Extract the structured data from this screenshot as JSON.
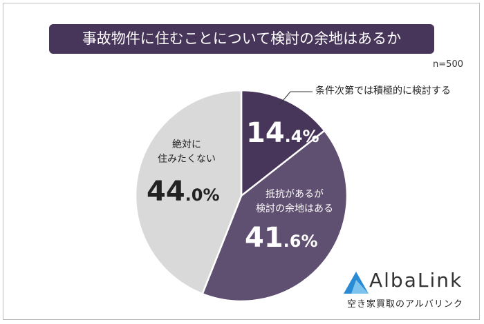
{
  "title": "事故物件に住むことについて検討の余地はあるか",
  "sample_size": "n=500",
  "chart_data": {
    "type": "pie",
    "title": "事故物件に住むことについて検討の余地はあるか",
    "slices": [
      {
        "label": "条件次第では積極的に検討する",
        "value": 14.4,
        "int": "14",
        "dec": ".4%",
        "color": "#47365a"
      },
      {
        "label_lines": [
          "抵抗があるが",
          "検討の余地はある"
        ],
        "value": 41.6,
        "int": "41",
        "dec": ".6%",
        "color": "#5f4f70"
      },
      {
        "label_lines": [
          "絶対に",
          "住みたくない"
        ],
        "value": 44.0,
        "int": "44",
        "dec": ".0%",
        "color": "#d9d9d9"
      }
    ],
    "start": "top",
    "direction": "clockwise"
  },
  "logo": {
    "name": "AlbaLink",
    "subtitle": "空き家買取のアルバリンク"
  }
}
